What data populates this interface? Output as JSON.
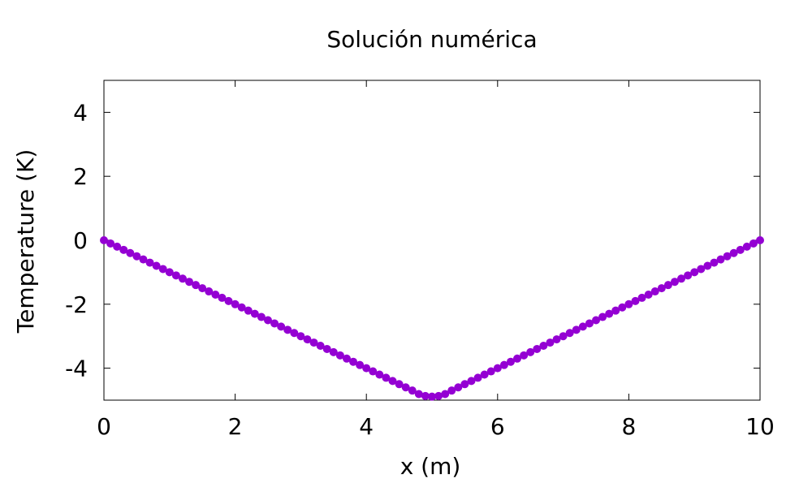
{
  "chart_data": {
    "type": "scatter",
    "title": "Solución numérica",
    "xlabel": "x (m)",
    "ylabel": "Temperature (K)",
    "xlim": [
      0,
      10
    ],
    "ylim": [
      -5,
      5
    ],
    "xticks": [
      0,
      2,
      4,
      6,
      8,
      10
    ],
    "xtick_labels": [
      "0",
      "2",
      "4",
      "6",
      "8",
      "10"
    ],
    "yticks": [
      -4,
      -2,
      0,
      2,
      4
    ],
    "ytick_labels": [
      "-4",
      "-2",
      "0",
      "2",
      "4"
    ],
    "grid": false,
    "legend": "none",
    "marker_color": "#9400d3",
    "series": [
      {
        "x": [
          0.0,
          0.1,
          0.2,
          0.3,
          0.4,
          0.5,
          0.6,
          0.7,
          0.8,
          0.9,
          1.0,
          1.1,
          1.2,
          1.3,
          1.4,
          1.5,
          1.6,
          1.7,
          1.8,
          1.9,
          2.0,
          2.1,
          2.2,
          2.3,
          2.4,
          2.5,
          2.6,
          2.7,
          2.8,
          2.9,
          3.0,
          3.1,
          3.2,
          3.3,
          3.4,
          3.5,
          3.6,
          3.7,
          3.8,
          3.9,
          4.0,
          4.1,
          4.2,
          4.3,
          4.4,
          4.5,
          4.6,
          4.7,
          4.8,
          4.9,
          5.0,
          5.1,
          5.2,
          5.3,
          5.4,
          5.5,
          5.6,
          5.7,
          5.8,
          5.9,
          6.0,
          6.1,
          6.2,
          6.3,
          6.4,
          6.5,
          6.6,
          6.7,
          6.8,
          6.9,
          7.0,
          7.1,
          7.2,
          7.3,
          7.4,
          7.5,
          7.6,
          7.7,
          7.8,
          7.9,
          8.0,
          8.1,
          8.2,
          8.3,
          8.4,
          8.5,
          8.6,
          8.7,
          8.8,
          8.9,
          9.0,
          9.1,
          9.2,
          9.3,
          9.4,
          9.5,
          9.6,
          9.7,
          9.8,
          9.9,
          10.0
        ],
        "y": [
          0.0,
          -0.1,
          -0.2,
          -0.3,
          -0.4,
          -0.5,
          -0.6,
          -0.7,
          -0.8,
          -0.9,
          -1.0,
          -1.1,
          -1.2,
          -1.3,
          -1.4,
          -1.5,
          -1.6,
          -1.7,
          -1.8,
          -1.9,
          -2.0,
          -2.1,
          -2.2,
          -2.3,
          -2.4,
          -2.5,
          -2.6,
          -2.7,
          -2.8,
          -2.9,
          -3.0,
          -3.1,
          -3.2,
          -3.3,
          -3.4,
          -3.5,
          -3.6,
          -3.7,
          -3.8,
          -3.9,
          -4.0,
          -4.1,
          -4.2,
          -4.3,
          -4.4,
          -4.5,
          -4.6,
          -4.7,
          -4.81,
          -4.87,
          -4.89,
          -4.87,
          -4.81,
          -4.7,
          -4.6,
          -4.5,
          -4.4,
          -4.3,
          -4.2,
          -4.1,
          -4.0,
          -3.9,
          -3.8,
          -3.7,
          -3.6,
          -3.5,
          -3.4,
          -3.3,
          -3.2,
          -3.1,
          -3.0,
          -2.9,
          -2.8,
          -2.7,
          -2.6,
          -2.5,
          -2.4,
          -2.3,
          -2.2,
          -2.1,
          -2.0,
          -1.9,
          -1.8,
          -1.7,
          -1.6,
          -1.5,
          -1.4,
          -1.3,
          -1.2,
          -1.1,
          -1.0,
          -0.9,
          -0.8,
          -0.7,
          -0.6,
          -0.5,
          -0.4,
          -0.3,
          -0.2,
          -0.1,
          0.0
        ]
      }
    ]
  }
}
